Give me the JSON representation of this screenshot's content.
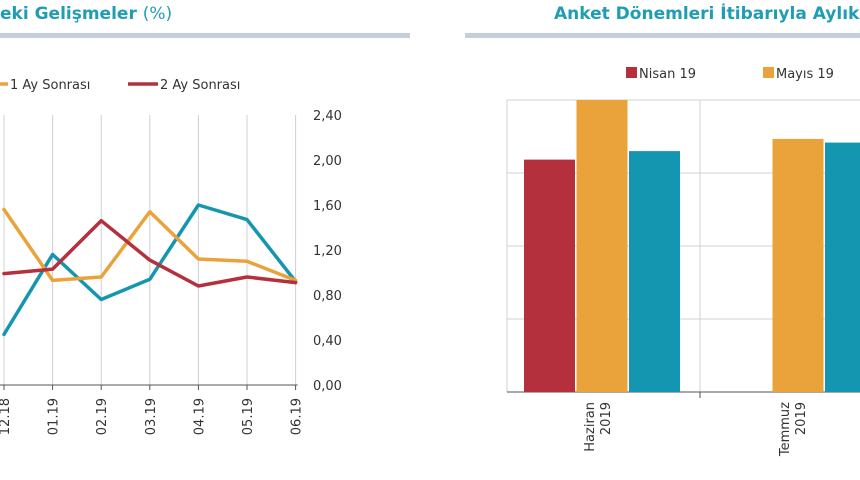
{
  "left_panel": {
    "title_visible": "eki Gelişmeler",
    "title_unit": "(%)"
  },
  "right_panel": {
    "title_visible": "Anket Dönemleri İtibarıyla Aylık T"
  },
  "colors": {
    "title": "#1f9db3",
    "teal": "#1496b0",
    "orange": "#e9a33a",
    "red": "#b5303d",
    "grid": "#d0d0d0"
  },
  "chart_data": [
    {
      "type": "line",
      "categories": [
        "12.18",
        "01.19",
        "02.19",
        "03.19",
        "04.19",
        "05.19",
        "06.19"
      ],
      "ylim": [
        0,
        2.4
      ],
      "y_ticks": [
        "0,00",
        "0,40",
        "0,80",
        "1,20",
        "1,60",
        "2,00",
        "2,40"
      ],
      "y_axis_side": "right",
      "grid": "vertical",
      "legend_position": "top",
      "series": [
        {
          "color": "#1496b0",
          "values": [
            0.45,
            1.16,
            0.76,
            0.94,
            1.6,
            1.47,
            0.92
          ]
        },
        {
          "name": "1 Ay Sonrası",
          "color": "#e9a33a",
          "values": [
            1.56,
            0.93,
            0.96,
            1.54,
            1.12,
            1.1,
            0.93
          ]
        },
        {
          "name": "2 Ay Sonrası",
          "color": "#b5303d",
          "values": [
            0.99,
            1.03,
            1.46,
            1.11,
            0.88,
            0.96,
            0.91
          ]
        }
      ]
    },
    {
      "type": "bar",
      "categories": [
        [
          "Haziran",
          "2019"
        ],
        [
          "Temmuz",
          "2019"
        ]
      ],
      "ylim": [
        0,
        2.4
      ],
      "grid": "horizontal",
      "legend_position": "top",
      "series": [
        {
          "name": "Nisan 19",
          "color": "#b5303d",
          "values": [
            1.91,
            null
          ]
        },
        {
          "name": "Mayıs 19",
          "color": "#e9a33a",
          "values": [
            2.4,
            2.08
          ]
        },
        {
          "color": "#1496b0",
          "values": [
            1.98,
            2.05
          ]
        }
      ]
    }
  ]
}
